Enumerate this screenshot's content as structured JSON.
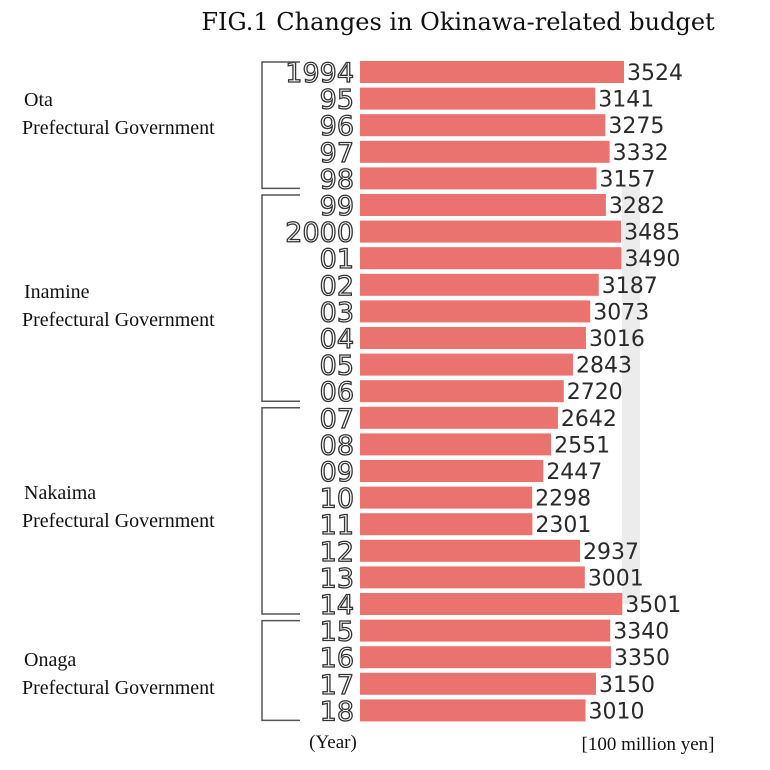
{
  "chart_data": {
    "type": "bar",
    "title": "FIG.1 Changes in Okinawa-related budget",
    "xlabel": "(Year)",
    "unit_label": "[100 million yen]",
    "orientation": "horizontal",
    "categories": [
      "1994",
      "95",
      "96",
      "97",
      "98",
      "99",
      "2000",
      "01",
      "02",
      "03",
      "04",
      "05",
      "06",
      "07",
      "08",
      "09",
      "10",
      "11",
      "12",
      "13",
      "14",
      "15",
      "16",
      "17",
      "18"
    ],
    "values": [
      3524,
      3141,
      3275,
      3332,
      3157,
      3282,
      3485,
      3490,
      3187,
      3073,
      3016,
      2843,
      2720,
      2642,
      2551,
      2447,
      2298,
      2301,
      2937,
      3001,
      3501,
      3340,
      3350,
      3150,
      3010
    ],
    "groups": [
      {
        "lines": [
          "Ota",
          "Prefectural Government"
        ],
        "from": 0,
        "to": 4
      },
      {
        "lines": [
          "Inamine",
          "Prefectural Government"
        ],
        "from": 5,
        "to": 12
      },
      {
        "lines": [
          "Nakaima",
          "Prefectural Government"
        ],
        "from": 13,
        "to": 20
      },
      {
        "lines": [
          "Onaga",
          "Prefectural Government"
        ],
        "from": 21,
        "to": 24
      }
    ],
    "bar_color": "#ea7370"
  }
}
